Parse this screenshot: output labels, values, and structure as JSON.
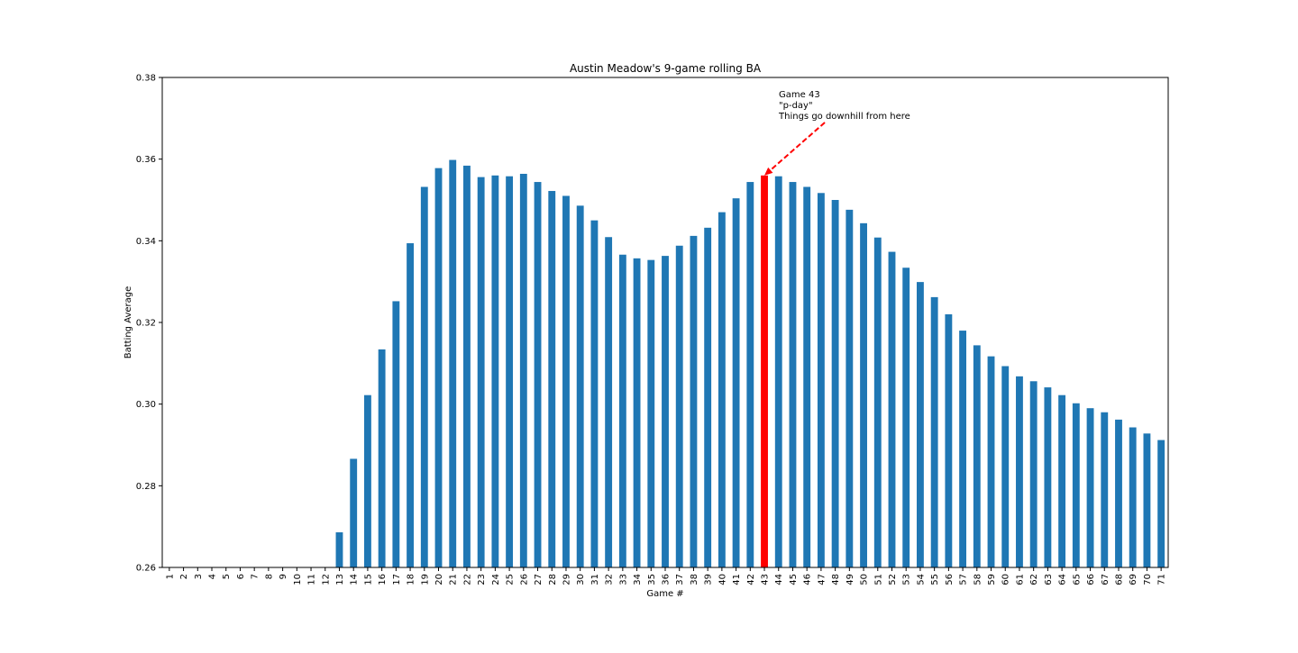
{
  "chart_data": {
    "type": "bar",
    "title": "Austin Meadow's 9-game rolling BA",
    "xlabel": "Game #",
    "ylabel": "Batting Average",
    "ylim": [
      0.26,
      0.38
    ],
    "yticks": [
      "0.26",
      "0.28",
      "0.30",
      "0.32",
      "0.34",
      "0.36",
      "0.38"
    ],
    "grid": false,
    "bar_color": "#1f77b4",
    "highlight_color": "#ff0000",
    "highlight_category": "43",
    "categories": [
      "1",
      "2",
      "3",
      "4",
      "5",
      "6",
      "7",
      "8",
      "9",
      "10",
      "11",
      "12",
      "13",
      "14",
      "15",
      "16",
      "17",
      "18",
      "19",
      "20",
      "21",
      "22",
      "23",
      "24",
      "25",
      "26",
      "27",
      "28",
      "29",
      "30",
      "31",
      "32",
      "33",
      "34",
      "35",
      "36",
      "37",
      "38",
      "39",
      "40",
      "41",
      "42",
      "43",
      "44",
      "45",
      "46",
      "47",
      "48",
      "49",
      "50",
      "51",
      "52",
      "53",
      "54",
      "55",
      "56",
      "57",
      "58",
      "59",
      "60",
      "61",
      "62",
      "63",
      "64",
      "65",
      "66",
      "67",
      "68",
      "69",
      "70",
      "71"
    ],
    "values": [
      null,
      null,
      null,
      null,
      null,
      null,
      null,
      null,
      null,
      null,
      null,
      null,
      0.2686,
      0.2866,
      0.3022,
      0.3134,
      0.3252,
      0.3394,
      0.3532,
      0.3578,
      0.3598,
      0.3584,
      0.3556,
      0.356,
      0.3558,
      0.3564,
      0.3544,
      0.3522,
      0.351,
      0.3486,
      0.345,
      0.3409,
      0.3366,
      0.3357,
      0.3353,
      0.3363,
      0.3388,
      0.3412,
      0.3432,
      0.347,
      0.3504,
      0.3544,
      0.356,
      0.3558,
      0.3544,
      0.3532,
      0.3517,
      0.35,
      0.3476,
      0.3443,
      0.3408,
      0.3373,
      0.3334,
      0.3299,
      0.3262,
      0.322,
      0.318,
      0.3144,
      0.3117,
      0.3093,
      0.3068,
      0.3056,
      0.3041,
      0.3022,
      0.3002,
      0.299,
      0.298,
      0.2962,
      0.2943,
      0.2928,
      0.2912
    ],
    "annotation": {
      "lines": [
        "Game 43",
        "\"p-day\"",
        "Things go downhill from here"
      ],
      "target_category": "43",
      "arrow_color": "#ff0000"
    }
  }
}
